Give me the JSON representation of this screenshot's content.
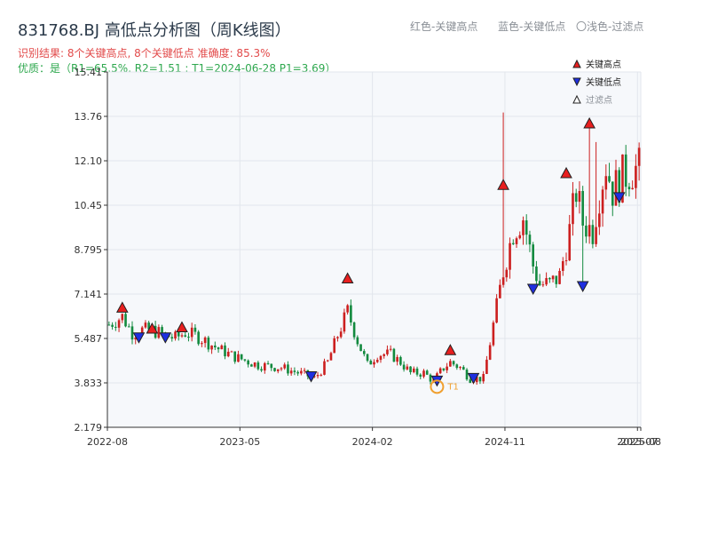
{
  "header": {
    "title": "831768.BJ 高低点分析图（周K线图）",
    "result": "识别结果: 8个关键高点, 8个关键低点  准确度: 85.3%",
    "quality": "优质：是（R1=65.5%, R2=1.51 ; T1=2024-06-28 P1=3.69）",
    "legend_red": "红色-关键高点",
    "legend_blue": "蓝色-关键低点",
    "legend_light": "〇浅色-过滤点"
  },
  "colors": {
    "up": "#cc1f1f",
    "down": "#138a3f",
    "high_marker": "#e81f1f",
    "low_marker": "#1f2fe0",
    "t1_circle": "#f0a030",
    "plot_bg": "#f6f8fb",
    "grid": "#e2e6ec"
  },
  "chart_data": {
    "type": "candlestick",
    "ylim": [
      2.179,
      15.41
    ],
    "y_ticks": [
      "2.179",
      "3.833",
      "5.487",
      "7.141",
      "8.795",
      "10.45",
      "12.10",
      "13.76",
      "15.41"
    ],
    "x_ticks": [
      "2022-08",
      "2023-05",
      "2024-02",
      "2024-11",
      "2025-07",
      "2025-08"
    ],
    "x_tick_index": [
      0,
      40,
      80,
      120,
      160,
      161
    ],
    "n_bars": 161,
    "legend": [
      {
        "name": "关键高点",
        "kind": "high"
      },
      {
        "name": "关键低点",
        "kind": "low"
      },
      {
        "name": "过滤点",
        "kind": "filtered"
      }
    ],
    "anchors": [
      [
        0,
        6.0
      ],
      [
        4,
        6.3
      ],
      [
        7,
        5.7
      ],
      [
        10,
        5.8
      ],
      [
        13,
        5.8
      ],
      [
        17,
        5.6
      ],
      [
        20,
        5.5
      ],
      [
        23,
        5.7
      ],
      [
        26,
        5.6
      ],
      [
        29,
        5.4
      ],
      [
        33,
        5.1
      ],
      [
        38,
        4.8
      ],
      [
        45,
        4.5
      ],
      [
        52,
        4.4
      ],
      [
        60,
        4.1
      ],
      [
        62,
        4.0
      ],
      [
        66,
        4.6
      ],
      [
        69,
        5.6
      ],
      [
        72,
        6.5
      ],
      [
        75,
        5.4
      ],
      [
        78,
        4.5
      ],
      [
        81,
        4.9
      ],
      [
        85,
        4.9
      ],
      [
        88,
        4.6
      ],
      [
        91,
        4.2
      ],
      [
        95,
        4.2
      ],
      [
        98,
        3.9
      ],
      [
        101,
        4.4
      ],
      [
        103,
        4.6
      ],
      [
        106,
        4.4
      ],
      [
        109,
        4.0
      ],
      [
        113,
        4.0
      ],
      [
        116,
        6.0
      ],
      [
        119,
        8.0
      ],
      [
        122,
        9.5
      ],
      [
        125,
        10.0
      ],
      [
        128,
        8.2
      ],
      [
        130,
        7.5
      ],
      [
        133,
        7.5
      ],
      [
        136,
        7.8
      ],
      [
        139,
        9.5
      ],
      [
        141,
        11.0
      ],
      [
        143,
        9.8
      ],
      [
        146,
        9.5
      ],
      [
        148,
        10.9
      ],
      [
        150,
        12.0
      ],
      [
        152,
        11.0
      ],
      [
        155,
        11.5
      ],
      [
        158,
        11.8
      ],
      [
        161,
        11.8
      ]
    ],
    "spikes": [
      {
        "index": 119,
        "high": 13.9
      },
      {
        "index": 143,
        "high": 7.3
      },
      {
        "index": 145,
        "high": 13.6
      },
      {
        "index": 147,
        "high": 12.8
      }
    ],
    "key_highs": [
      {
        "index": 4,
        "value": 6.63
      },
      {
        "index": 13,
        "value": 5.85
      },
      {
        "index": 22,
        "value": 5.9
      },
      {
        "index": 72,
        "value": 7.72
      },
      {
        "index": 103,
        "value": 5.05
      },
      {
        "index": 119,
        "value": 11.2
      },
      {
        "index": 138,
        "value": 11.64
      },
      {
        "index": 145,
        "value": 13.49
      }
    ],
    "key_lows": [
      {
        "index": 9,
        "value": 5.53
      },
      {
        "index": 17,
        "value": 5.53
      },
      {
        "index": 61,
        "value": 4.08
      },
      {
        "index": 99,
        "value": 3.92
      },
      {
        "index": 110,
        "value": 4.02
      },
      {
        "index": 128,
        "value": 7.34
      },
      {
        "index": 143,
        "value": 7.44
      },
      {
        "index": 154,
        "value": 10.75
      }
    ],
    "filtered_points": [
      {
        "index": 99,
        "value": 3.69,
        "label": "T1"
      }
    ]
  }
}
